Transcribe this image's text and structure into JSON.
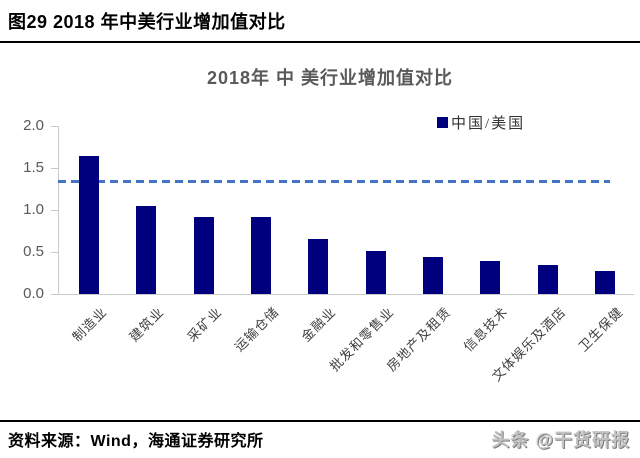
{
  "page": {
    "header_title": "图29 2018 年中美行业增加值对比",
    "source_note": "资料来源：Wind，海通证券研究所",
    "watermark": "头条 @干货研报"
  },
  "chart_data": {
    "type": "bar",
    "title": "2018年 中 美行业增加值对比",
    "series_name": "中国/美国",
    "categories": [
      "制造业",
      "建筑业",
      "采矿业",
      "运输仓储",
      "金融业",
      "批发和零售业",
      "房地产及租赁",
      "信息技术",
      "文体娱乐及酒店",
      "卫生保健"
    ],
    "values": [
      1.64,
      1.05,
      0.91,
      0.91,
      0.65,
      0.51,
      0.44,
      0.39,
      0.35,
      0.27
    ],
    "bar_color": "#00007F",
    "reference_line": {
      "value": 1.34,
      "color": "#4472C4",
      "style": "dashed"
    },
    "ylim": [
      0,
      2.0
    ],
    "ytick_labels": [
      "0.0",
      "0.5",
      "1.0",
      "1.5",
      "2.0"
    ],
    "legend_position": "top-right",
    "grid": false,
    "x_label_rotation_deg": 45
  }
}
